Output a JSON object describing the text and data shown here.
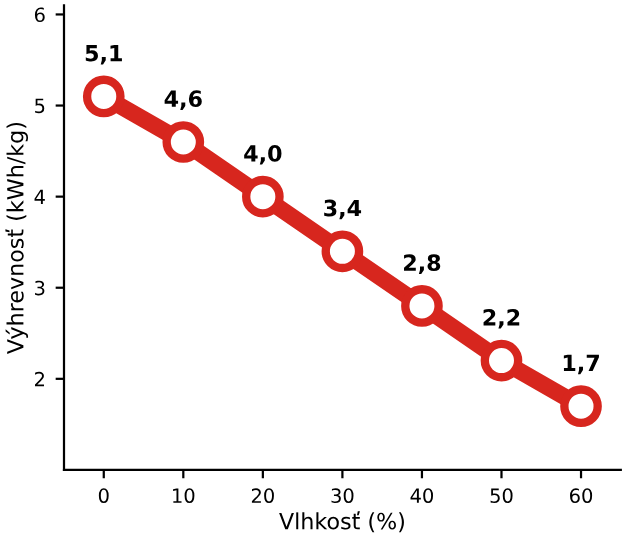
{
  "chart_data": {
    "type": "line",
    "xlabel": "Vlhkosť (%)",
    "ylabel": "Výhrevnosť (kWh/kg)",
    "x": [
      0,
      10,
      20,
      30,
      40,
      50,
      60
    ],
    "series": [
      {
        "color": "#d7261e",
        "values": [
          5.1,
          4.6,
          4.0,
          3.4,
          2.8,
          2.2,
          1.7
        ],
        "value_labels": [
          "5,1",
          "4,6",
          "4,0",
          "3,4",
          "2,8",
          "2,2",
          "1,7"
        ]
      }
    ],
    "xlim": [
      -5,
      65
    ],
    "xticks": [
      0,
      10,
      20,
      30,
      40,
      50,
      60
    ],
    "ylim": [
      1,
      6.1
    ],
    "yticks": [
      2,
      3,
      4,
      5,
      6
    ],
    "marker": "circle",
    "line_style": "solid",
    "grid": false,
    "legend": false
  }
}
